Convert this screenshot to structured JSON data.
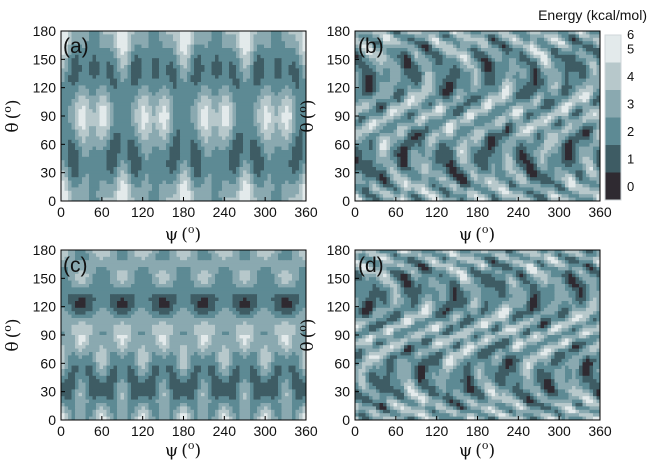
{
  "chart_data": [
    {
      "type": "heatmap",
      "panel_label": "(a)",
      "xlabel": "ψ",
      "ylabel": "θ",
      "x_unit": "o",
      "y_unit": "o",
      "xlim": [
        0,
        360
      ],
      "ylim": [
        0,
        180
      ],
      "xticks": [
        "0",
        "60",
        "120",
        "180",
        "240",
        "300",
        "360"
      ],
      "yticks": [
        "0",
        "30",
        "60",
        "90",
        "120",
        "150",
        "180"
      ],
      "pattern": {
        "kind": "symmetric",
        "kx": 4,
        "ky": 2,
        "phase": 0.0,
        "tilt": 0.0
      }
    },
    {
      "type": "heatmap",
      "panel_label": "(b)",
      "xlabel": "ψ",
      "ylabel": "θ",
      "x_unit": "o",
      "y_unit": "o",
      "xlim": [
        0,
        360
      ],
      "ylim": [
        0,
        180
      ],
      "xticks": [
        "0",
        "60",
        "120",
        "180",
        "240",
        "300",
        "360"
      ],
      "yticks": [
        "0",
        "30",
        "60",
        "90",
        "120",
        "150",
        "180"
      ],
      "pattern": {
        "kind": "tilted",
        "kx": 6,
        "ky": 2,
        "phase": 0.6,
        "tilt": 1.2
      }
    },
    {
      "type": "heatmap",
      "panel_label": "(c)",
      "xlabel": "ψ",
      "ylabel": "θ",
      "x_unit": "o",
      "y_unit": "o",
      "xlim": [
        0,
        360
      ],
      "ylim": [
        0,
        180
      ],
      "xticks": [
        "0",
        "60",
        "120",
        "180",
        "240",
        "300",
        "360"
      ],
      "yticks": [
        "0",
        "30",
        "60",
        "90",
        "120",
        "150",
        "180"
      ],
      "pattern": {
        "kind": "banded",
        "kx": 6,
        "ky": 3,
        "phase": 0.0,
        "tilt": 0.0
      }
    },
    {
      "type": "heatmap",
      "panel_label": "(d)",
      "xlabel": "ψ",
      "ylabel": "θ",
      "x_unit": "o",
      "y_unit": "o",
      "xlim": [
        0,
        360
      ],
      "ylim": [
        0,
        180
      ],
      "xticks": [
        "0",
        "60",
        "120",
        "180",
        "240",
        "300",
        "360"
      ],
      "yticks": [
        "0",
        "30",
        "60",
        "90",
        "120",
        "150",
        "180"
      ],
      "pattern": {
        "kind": "tilted",
        "kx": 6,
        "ky": 2,
        "phase": 2.1,
        "tilt": 1.5
      }
    }
  ],
  "colorbar": {
    "title": "Energy (kcal/mol)",
    "levels": [
      "0",
      "1",
      "2",
      "3",
      "4",
      "5",
      "6"
    ],
    "colors": [
      "#2f2a31",
      "#3e5c64",
      "#5d8a94",
      "#8aa9b0",
      "#b7c8cb",
      "#e3eaeb",
      "#ffffff"
    ]
  }
}
